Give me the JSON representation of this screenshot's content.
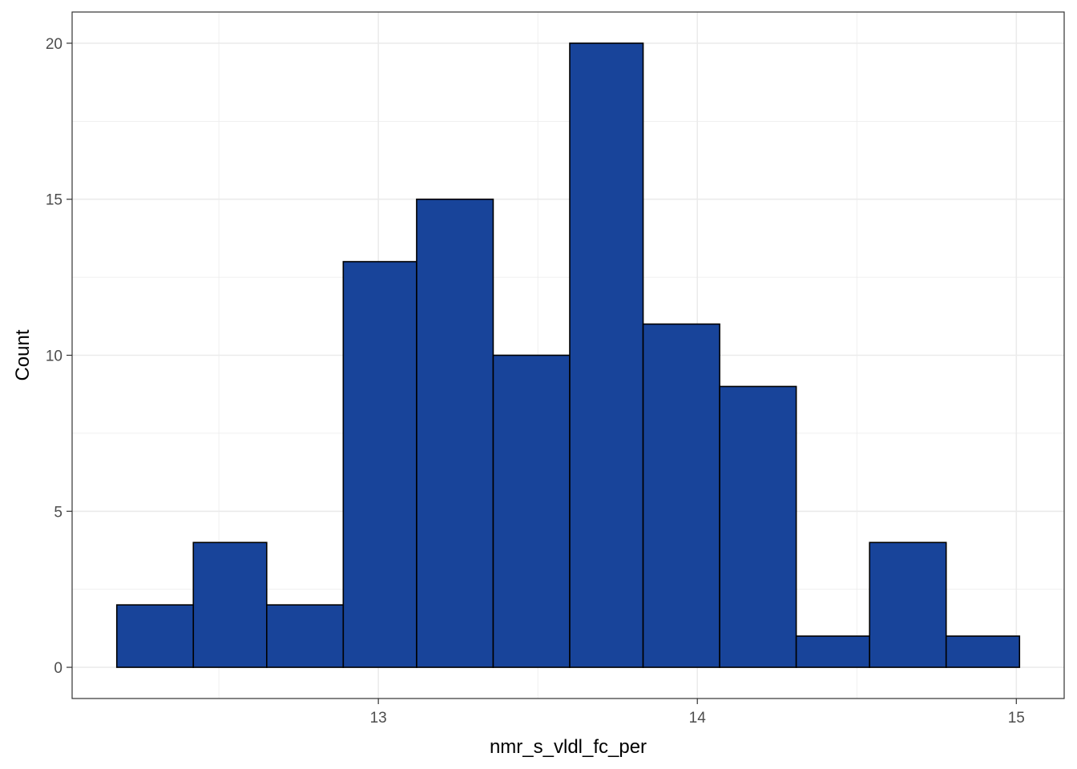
{
  "chart_data": {
    "type": "bar",
    "subtype": "histogram",
    "xlabel": "nmr_s_vldl_fc_per",
    "ylabel": "Count",
    "bins": [
      {
        "x0": 12.18,
        "x1": 12.42,
        "count": 2
      },
      {
        "x0": 12.42,
        "x1": 12.65,
        "count": 4
      },
      {
        "x0": 12.65,
        "x1": 12.89,
        "count": 2
      },
      {
        "x0": 12.89,
        "x1": 13.12,
        "count": 13
      },
      {
        "x0": 13.12,
        "x1": 13.36,
        "count": 15
      },
      {
        "x0": 13.36,
        "x1": 13.6,
        "count": 10
      },
      {
        "x0": 13.6,
        "x1": 13.83,
        "count": 20
      },
      {
        "x0": 13.83,
        "x1": 14.07,
        "count": 11
      },
      {
        "x0": 14.07,
        "x1": 14.31,
        "count": 9
      },
      {
        "x0": 14.31,
        "x1": 14.54,
        "count": 1
      },
      {
        "x0": 14.54,
        "x1": 14.78,
        "count": 4
      },
      {
        "x0": 14.78,
        "x1": 15.01,
        "count": 1
      }
    ],
    "xlim": [
      12.04,
      15.15
    ],
    "ylim": [
      -1,
      21
    ],
    "x_ticks": [
      13,
      14,
      15
    ],
    "x_minor_ticks": [
      12.5,
      13.5,
      14.5
    ],
    "y_ticks": [
      0,
      5,
      10,
      15,
      20
    ],
    "y_minor_ticks": [
      2.5,
      7.5,
      12.5,
      17.5
    ],
    "x_tick_labels": [
      "13",
      "14",
      "15"
    ],
    "y_tick_labels": [
      "0",
      "5",
      "10",
      "15",
      "20"
    ],
    "grid": true,
    "bar_fill": "#18449a",
    "bar_stroke": "#000000",
    "panel_border": "#333333",
    "grid_color": "#ebebeb"
  }
}
